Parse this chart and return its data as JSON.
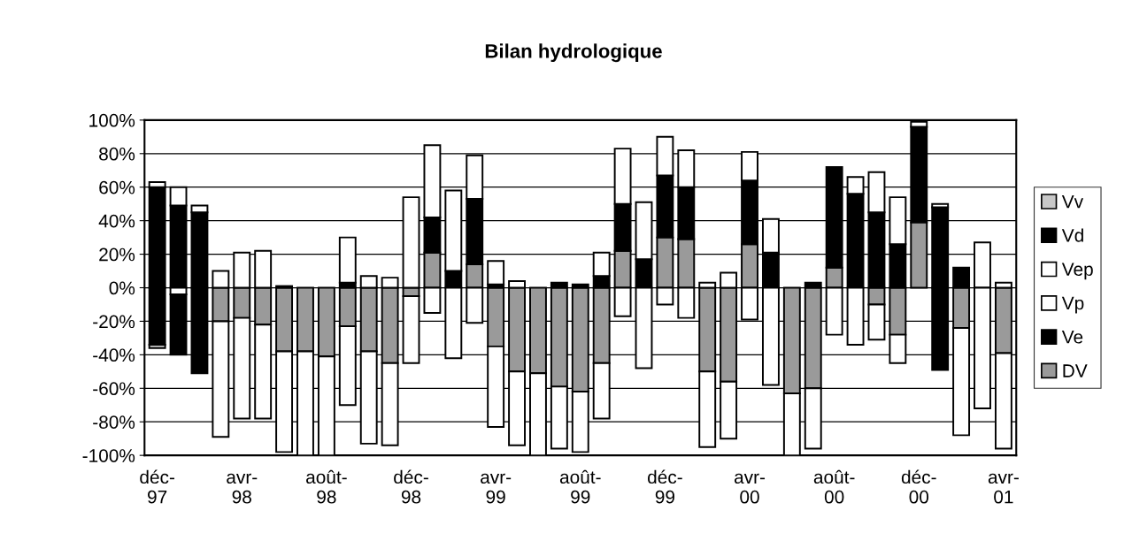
{
  "chart_data": {
    "type": "bar",
    "title": "Bilan hydrologique",
    "stacked": true,
    "categories": [
      "déc-97",
      null,
      null,
      null,
      "avr-98",
      null,
      null,
      null,
      "août-98",
      null,
      null,
      null,
      "déc-98",
      null,
      null,
      null,
      "avr-99",
      null,
      null,
      null,
      "août-99",
      null,
      null,
      null,
      "déc-99",
      null,
      null,
      null,
      "avr-00",
      null,
      null,
      null,
      "août-00",
      null,
      null,
      null,
      "déc-00",
      null,
      null,
      null,
      "avr-01"
    ],
    "series": [
      {
        "name": "DV",
        "color": "#9a9a9a",
        "values": [
          0,
          0,
          0,
          -20,
          -18,
          -22,
          -38,
          -38,
          -41,
          -23,
          -38,
          -45,
          -5,
          21,
          null,
          14,
          -35,
          -50,
          -51,
          -59,
          -62,
          -45,
          22,
          0,
          30,
          29,
          -50,
          -56,
          26,
          0,
          -63,
          -60,
          12,
          0,
          -10,
          -28,
          39,
          0,
          -24,
          0,
          -39
        ]
      },
      {
        "name": "Ve",
        "color": "#000000",
        "values": [
          60,
          49,
          45,
          0,
          0,
          0,
          1,
          0,
          0,
          3,
          0,
          0,
          0,
          21,
          10,
          39,
          2,
          0,
          0,
          3,
          2,
          7,
          28,
          17,
          37,
          31,
          0,
          0,
          38,
          21,
          0,
          3,
          60,
          56,
          45,
          26,
          57,
          48,
          12,
          0,
          0
        ]
      },
      {
        "name": "Vp",
        "color": "#ffffff",
        "values": [
          3,
          11,
          4,
          10,
          21,
          22,
          0,
          0,
          0,
          27,
          7,
          6,
          54,
          43,
          48,
          26,
          14,
          4,
          0,
          0,
          0,
          14,
          33,
          34,
          23,
          22,
          3,
          9,
          17,
          20,
          0,
          0,
          0,
          10,
          24,
          28,
          3,
          2,
          0,
          27,
          3
        ]
      },
      {
        "name": "Vep",
        "color": "#ffffff",
        "values": [
          0,
          -4,
          0,
          -69,
          -60,
          -56,
          -60,
          -62,
          -59,
          -47,
          -55,
          -49,
          -40,
          -15,
          -42,
          -21,
          -48,
          -44,
          -49,
          -37,
          -36,
          -33,
          -17,
          -48,
          -10,
          -18,
          -45,
          -34,
          -19,
          -58,
          -37,
          -36,
          -28,
          -34,
          -21,
          -17,
          0,
          0,
          -64,
          -72,
          -57
        ]
      },
      {
        "name": "Vd",
        "color": "#000000",
        "values": [
          -34,
          -36,
          -51,
          0,
          0,
          0,
          0,
          0,
          0,
          0,
          0,
          0,
          0,
          0,
          0,
          0,
          0,
          0,
          0,
          0,
          0,
          0,
          0,
          0,
          0,
          0,
          0,
          0,
          0,
          0,
          0,
          0,
          0,
          0,
          0,
          0,
          0,
          -49,
          0,
          0,
          0
        ]
      },
      {
        "name": "Vv",
        "color": "#c8c8c8",
        "values": [
          -2,
          0,
          0,
          0,
          0,
          0,
          0,
          0,
          0,
          0,
          0,
          0,
          0,
          0,
          0,
          0,
          0,
          0,
          0,
          0,
          0,
          0,
          0,
          0,
          0,
          0,
          0,
          0,
          0,
          0,
          0,
          0,
          0,
          0,
          0,
          0,
          0,
          0,
          0,
          0,
          0
        ]
      }
    ],
    "ylim": [
      -100,
      100
    ],
    "yticks": [
      {
        "value": -100,
        "label": "-100%"
      },
      {
        "value": -80,
        "label": "-80%"
      },
      {
        "value": -60,
        "label": "-60%"
      },
      {
        "value": -40,
        "label": "-40%"
      },
      {
        "value": -20,
        "label": "-20%"
      },
      {
        "value": 0,
        "label": "0%"
      },
      {
        "value": 20,
        "label": "20%"
      },
      {
        "value": 40,
        "label": "40%"
      },
      {
        "value": 60,
        "label": "60%"
      },
      {
        "value": 80,
        "label": "80%"
      },
      {
        "value": 100,
        "label": "100%"
      }
    ],
    "grid": "y",
    "legend": "right"
  }
}
